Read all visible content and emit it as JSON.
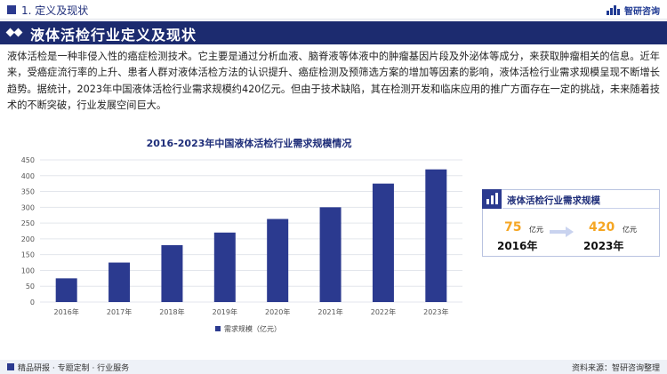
{
  "header": {
    "section": "1. 定义及现状",
    "logo_text": "智研咨询"
  },
  "title_bar": {
    "title": "液体活检行业定义及现状"
  },
  "paragraph": {
    "text": "液体活检是一种非侵入性的癌症检测技术。它主要是通过分析血液、脑脊液等体液中的肿瘤基因片段及外泌体等成分，来获取肿瘤相关的信息。近年来，受癌症流行率的上升、患者人群对液体活检方法的认识提升、癌症检测及预筛选方案的增加等因素的影响，液体活检行业需求规模呈现不断增长趋势。据统计，2023年中国液体活检行业需求规模约420亿元。但由于技术缺陷，其在检测开发和临床应用的推广方面存在一定的挑战，未来随着技术的不断突破，行业发展空间巨大。"
  },
  "chart_data": {
    "type": "bar",
    "title": "2016-2023年中国液体活检行业需求规模情况",
    "categories": [
      "2016年",
      "2017年",
      "2018年",
      "2019年",
      "2020年",
      "2021年",
      "2022年",
      "2023年"
    ],
    "series": [
      {
        "name": "需求规模（亿元）",
        "values": [
          75,
          125,
          180,
          220,
          263,
          300,
          375,
          420
        ]
      }
    ],
    "ylim": [
      0,
      450
    ],
    "yticks": [
      0,
      50,
      100,
      150,
      200,
      250,
      300,
      350,
      400,
      450
    ],
    "grid": true,
    "legend": "bottom-center",
    "bar_color": "#2b3a8f"
  },
  "panel": {
    "title": "液体活检行业需求规模",
    "start_value": "75",
    "start_unit": "亿元",
    "start_year": "2016年",
    "end_value": "420",
    "end_unit": "亿元",
    "end_year": "2023年"
  },
  "footer": {
    "left": "精品研报 · 专题定制 · 行业服务",
    "right": "资料来源：智研咨询整理"
  },
  "colors": {
    "navy": "#1c2b6f",
    "bar": "#2b3a8f",
    "accent": "#f5a623"
  }
}
